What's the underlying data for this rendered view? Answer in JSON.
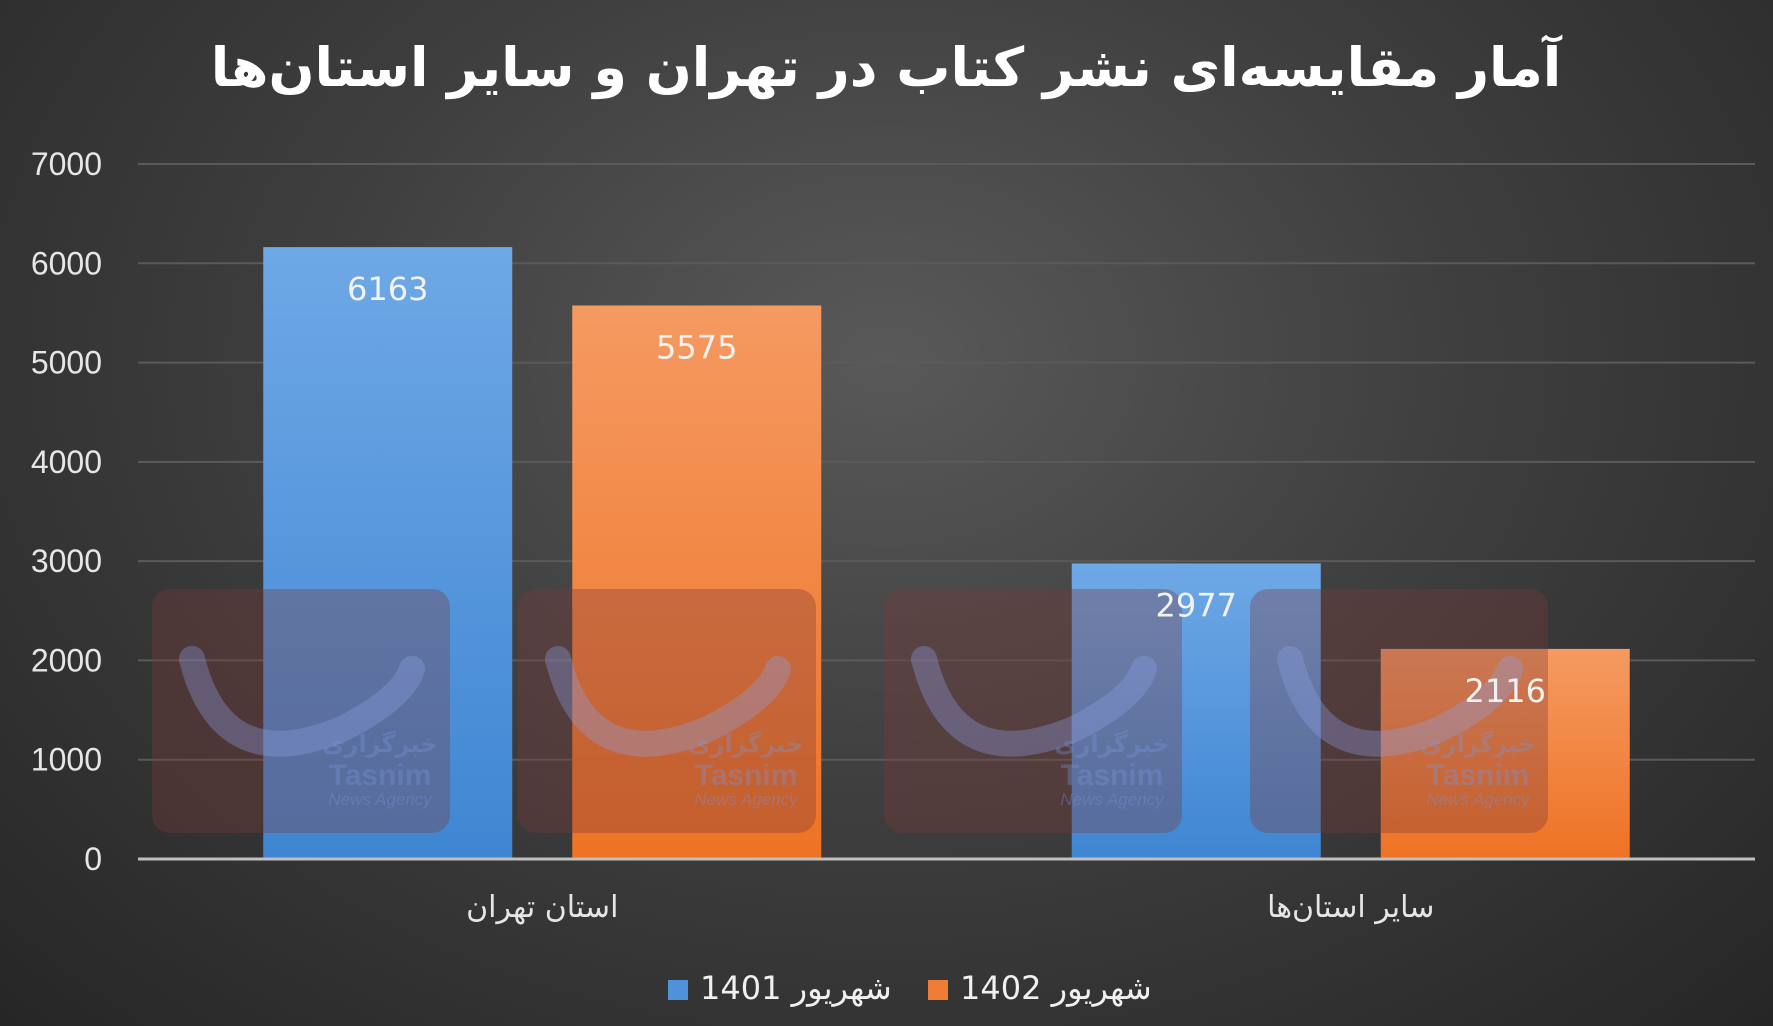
{
  "chart_data": {
    "type": "bar",
    "title": "آمار مقایسه‌ای نشر کتاب در تهران و سایر استان‌ها",
    "categories": [
      "استان تهران",
      "سایر استان‌ها"
    ],
    "series": [
      {
        "name": "شهریور 1401",
        "values": [
          6163,
          2977
        ],
        "color": "#4f92d9"
      },
      {
        "name": "شهریور 1402",
        "values": [
          5575,
          2116
        ],
        "color": "#f07d35"
      }
    ],
    "ylim": [
      0,
      7000
    ],
    "yticks": [
      0,
      1000,
      2000,
      3000,
      4000,
      5000,
      6000,
      7000
    ],
    "grid": true,
    "legend_position": "bottom",
    "data_labels": true
  },
  "watermark": {
    "brand": "Tasnim",
    "subtitle": "News Agency",
    "label_fa": "خبرگزاری"
  },
  "colors": {
    "background": "#3f3f3f",
    "gridline": "#5a5a5a",
    "axis": "#bfbfbf",
    "watermark_tile": "#7a3a3a"
  }
}
